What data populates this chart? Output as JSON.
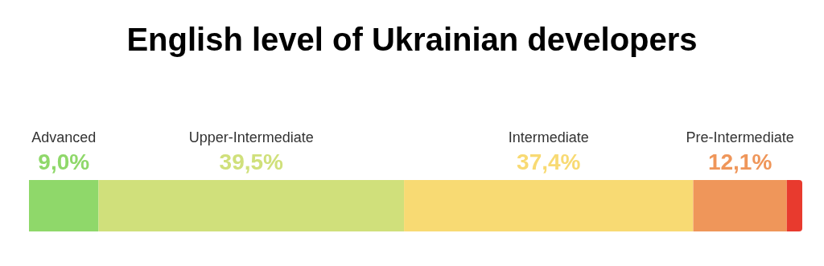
{
  "chart_data": {
    "type": "bar",
    "title": "English level of Ukrainian developers",
    "orientation": "horizontal",
    "stacked": true,
    "categories": [
      null
    ],
    "tick_labels": false,
    "legend": false,
    "series": [
      {
        "name": "Advanced",
        "color": "#8fd86a",
        "values": [
          9.0
        ],
        "value_labels": [
          "9,0%"
        ]
      },
      {
        "name": "Upper-Intermediate",
        "color": "#d0e07b",
        "values": [
          39.5
        ],
        "value_labels": [
          "39,5%"
        ]
      },
      {
        "name": "Intermediate",
        "color": "#f8da73",
        "values": [
          37.4
        ],
        "value_labels": [
          "37,4%"
        ]
      },
      {
        "name": "Pre-Intermediate",
        "color": "#ef965a",
        "values": [
          12.1
        ],
        "value_labels": [
          "12,1%"
        ]
      },
      {
        "color": "#e83a2e",
        "values": [
          2.0
        ],
        "value_labels": [
          null
        ]
      }
    ]
  }
}
